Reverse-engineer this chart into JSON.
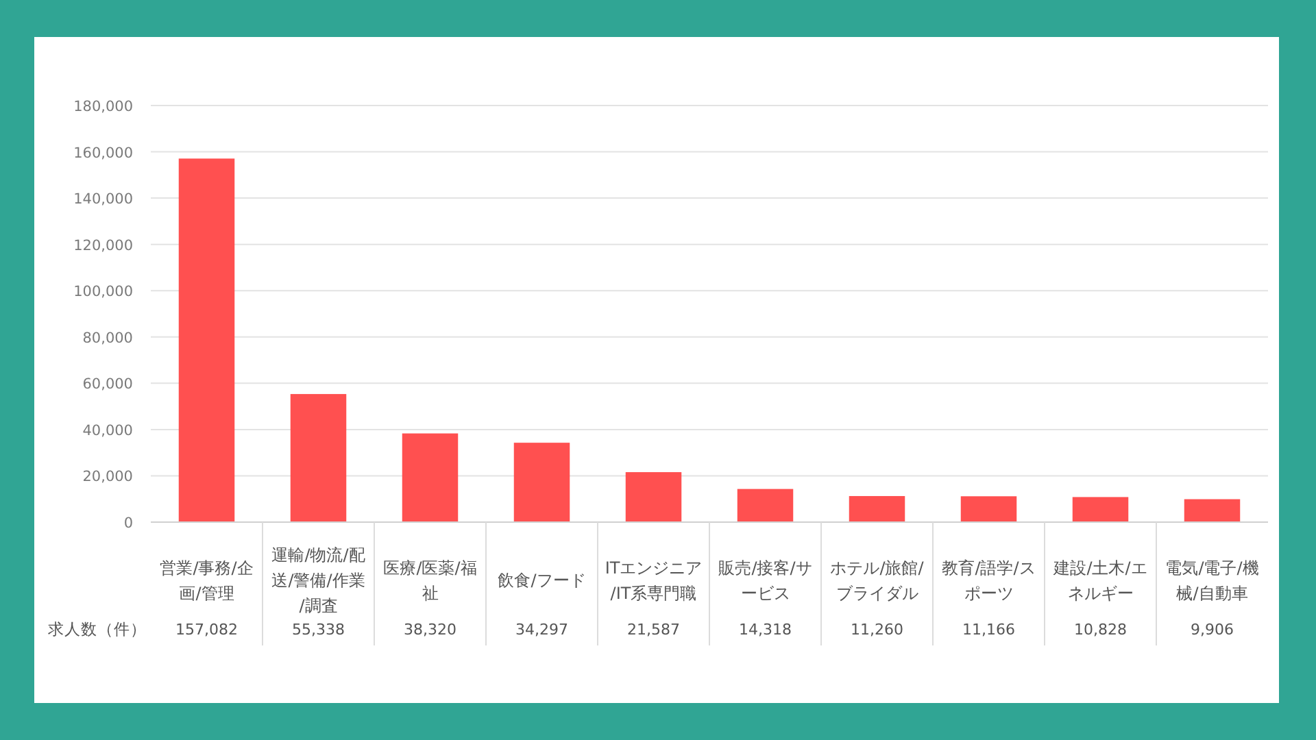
{
  "chart_data": {
    "type": "bar",
    "categories": [
      "営業/事務/企画/管理",
      "運輸/物流/配送/警備/作業/調査",
      "医療/医薬/福祉",
      "飲食/フード",
      "ITエンジニア/IT系専門職",
      "販売/接客/サービス",
      "ホテル/旅館/ブライダル",
      "教育/語学/スポーツ",
      "建設/土木/エネルギー",
      "電気/電子/機械/自動車"
    ],
    "series": [
      {
        "name": "求人数（件）",
        "color": "#ff5050",
        "values": [
          157082,
          55338,
          38320,
          34297,
          21587,
          14318,
          11260,
          11166,
          10828,
          9906
        ],
        "value_labels": [
          "157,082",
          "55,338",
          "38,320",
          "34,297",
          "21,587",
          "14,318",
          "11,260",
          "11,166",
          "10,828",
          "9,906"
        ]
      }
    ],
    "ylim": [
      0,
      180000
    ],
    "yticks": [
      0,
      {
        "value": 20000,
        "label": "20,000"
      },
      {
        "value": 40000,
        "label": "40,000"
      },
      {
        "value": 60000,
        "label": "60,000"
      },
      {
        "value": 80000,
        "label": "80,000"
      },
      {
        "value": 100000,
        "label": "100,000"
      },
      {
        "value": 120000,
        "label": "120,000"
      },
      {
        "value": 140000,
        "label": "140,000"
      },
      {
        "value": 160000,
        "label": "160,000"
      },
      {
        "value": 180000,
        "label": "180,000"
      }
    ],
    "grid": "y"
  }
}
